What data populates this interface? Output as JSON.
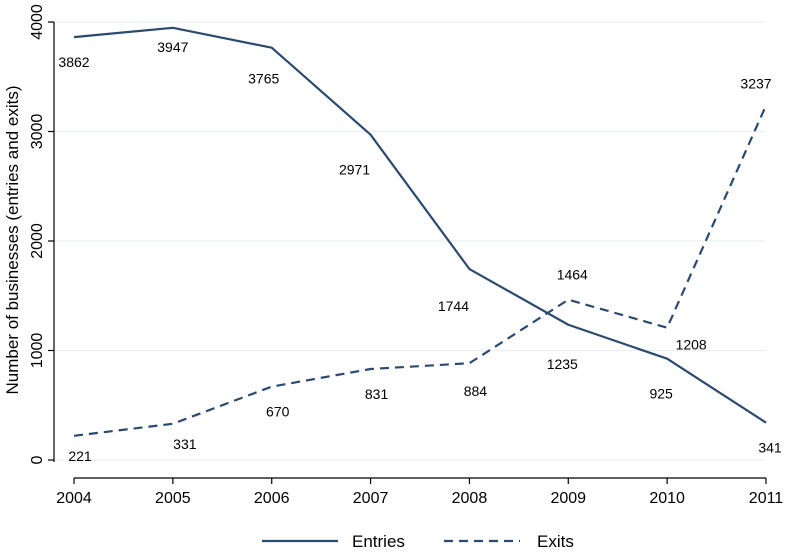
{
  "chart_data": {
    "type": "line",
    "title": "",
    "xlabel": "",
    "ylabel": "Number of businesses (entries and exits)",
    "x": [
      2004,
      2005,
      2006,
      2007,
      2008,
      2009,
      2010,
      2011
    ],
    "x_tick_labels": [
      "2004",
      "2005",
      "2006",
      "2007",
      "2008",
      "2009",
      "2010",
      "2011"
    ],
    "ylim": [
      0,
      4000
    ],
    "y_ticks": [
      0,
      1000,
      2000,
      3000,
      4000
    ],
    "y_tick_labels": [
      "0",
      "1000",
      "2000",
      "3000",
      "4000"
    ],
    "grid": true,
    "legend_position": "bottom",
    "series": [
      {
        "name": "Entries",
        "style": "solid",
        "color": "#2b4a6f",
        "values": [
          3862,
          3947,
          3765,
          2971,
          1744,
          1235,
          925,
          341
        ],
        "value_labels": [
          "3862",
          "3947",
          "3765",
          "2971",
          "1744",
          "1235",
          "925",
          "341"
        ]
      },
      {
        "name": "Exits",
        "style": "dashed",
        "color": "#2b4a6f",
        "values": [
          221,
          331,
          670,
          831,
          884,
          1464,
          1208,
          3237
        ],
        "value_labels": [
          "221",
          "331",
          "670",
          "831",
          "884",
          "1464",
          "1208",
          "3237"
        ]
      }
    ]
  }
}
